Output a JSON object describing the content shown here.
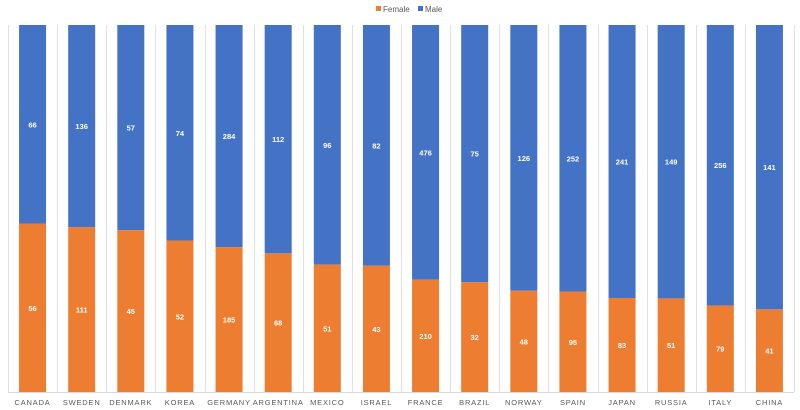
{
  "chart_data": {
    "type": "bar",
    "stacked": "percent",
    "categories": [
      "CANADA",
      "SWEDEN",
      "DENMARK",
      "KOREA",
      "GERMANY",
      "ARGENTINA",
      "MEXICO",
      "ISRAEL",
      "FRANCE",
      "BRAZIL",
      "NORWAY",
      "SPAIN",
      "JAPAN",
      "RUSSIA",
      "ITALY",
      "CHINA"
    ],
    "series": [
      {
        "name": "Female",
        "color": "#ED7D31",
        "values": [
          56,
          111,
          45,
          52,
          185,
          68,
          51,
          43,
          210,
          32,
          48,
          95,
          83,
          51,
          79,
          41
        ]
      },
      {
        "name": "Male",
        "color": "#4472C4",
        "values": [
          66,
          136,
          57,
          74,
          284,
          112,
          96,
          82,
          476,
          75,
          126,
          252,
          241,
          149,
          256,
          141
        ]
      }
    ],
    "legend": "top-center",
    "grid": true
  }
}
